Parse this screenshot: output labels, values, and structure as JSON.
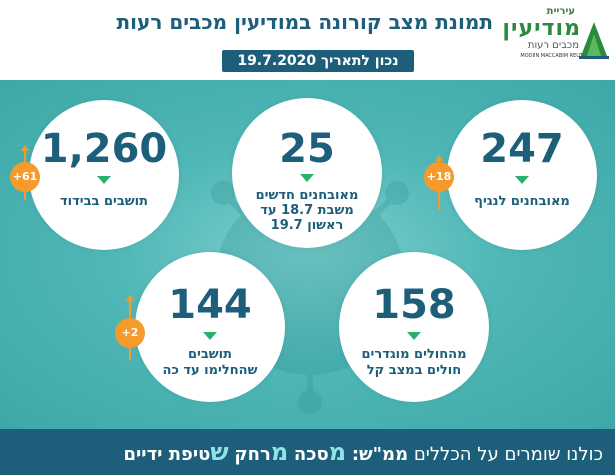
{
  "header": {
    "title": "תמונת מצב קורונה במודיעין מכבים רעות",
    "date": "נכון לתאריך 19.7.2020"
  },
  "logo": {
    "line1": "עיריית",
    "line2": "מודיעין",
    "line3": "מכבים רעות",
    "line4": "MODIIN MACCABIM REUT"
  },
  "stats": {
    "diagnosed": {
      "value": "247",
      "label": "מאובחנים לנגיף",
      "change": "+18"
    },
    "new_diagnosed": {
      "value": "25",
      "label_line1": "מאובחנים חדשים",
      "label_line2": "משבת 18.7 עד",
      "label_line3": "ראשון 19.7"
    },
    "isolation": {
      "value": "1,260",
      "label": "תושבים בבידוד",
      "change": "+61"
    },
    "active": {
      "value": "158",
      "label_line1": "מהחולים מוגדרים",
      "label_line2": "חולים במצב קל"
    },
    "recovered": {
      "value": "144",
      "label_line1": "תושבים",
      "label_line2": "שהחלימו עד כה",
      "change": "+2"
    }
  },
  "footer": {
    "prefix": "כולנו שומרים על הכללים",
    "mem": "ממ\"ש:",
    "m1": "מ",
    "w1": "סכה",
    "m2": "מ",
    "w2": "רחק",
    "s": "ש",
    "w3": "טיפת ידיים"
  },
  "colors": {
    "primary": "#1d5f7b",
    "accent": "#f59a2b",
    "arrow": "#26b26a",
    "teal": "#4fb7b6"
  }
}
